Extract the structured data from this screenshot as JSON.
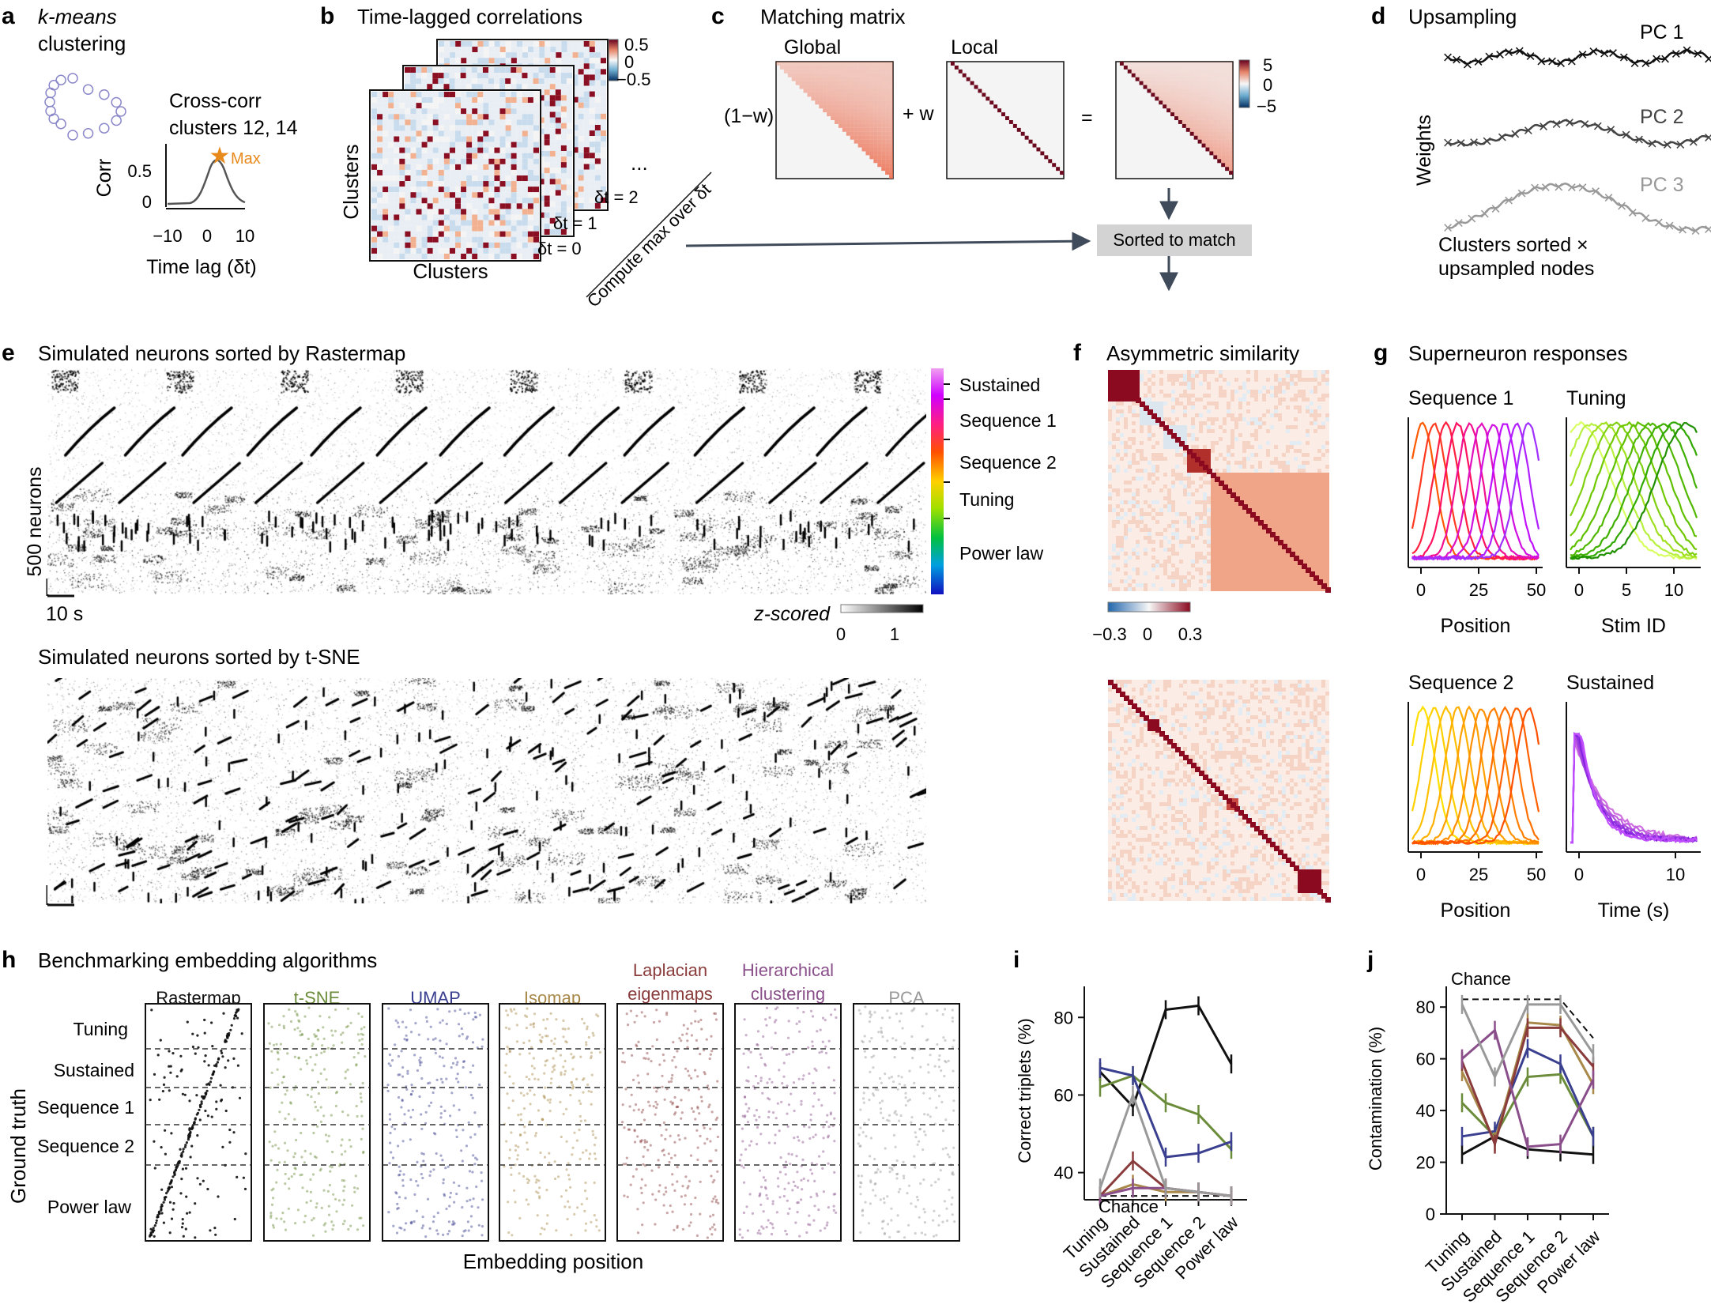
{
  "panels": {
    "a": {
      "letter": "a",
      "title_line1": "k-means",
      "title_line2": "clustering",
      "cc_title1": "Cross-corr",
      "cc_title2": "clusters 12, 14",
      "ylabel": "Corr",
      "xlabel": "Time lag (δt)",
      "max_label": "Max",
      "yticks": [
        "0.5",
        "0"
      ],
      "xticks": [
        "−10",
        "0",
        "10"
      ]
    },
    "b": {
      "letter": "b",
      "title": "Time-lagged correlations",
      "ylabel": "Clusters",
      "xlabel": "Clusters",
      "lags": [
        "δt = 0",
        "δt = 1",
        "δt = 2"
      ],
      "ellipsis": "...",
      "cbar_ticks": [
        "0.5",
        "0",
        "−0.5"
      ],
      "diag_label": "Compute max over δt"
    },
    "c": {
      "letter": "c",
      "title": "Matching matrix",
      "global": "Global",
      "local": "Local",
      "w_left": "(1−w)",
      "plus_w": "+ w",
      "equals": "=",
      "cbar_ticks": [
        "5",
        "0",
        "−5"
      ],
      "sorted_box": "Sorted to match"
    },
    "d": {
      "letter": "d",
      "title": "Upsampling",
      "ylabel": "Weights",
      "pcs": [
        "PC 1",
        "PC 2",
        "PC 3"
      ],
      "caption1": "Clusters sorted ×",
      "caption2": "upsampled nodes"
    },
    "e": {
      "letter": "e",
      "title": "Simulated neurons sorted by Rastermap",
      "title2": "Simulated neurons sorted by t-SNE",
      "ylabel": "500 neurons",
      "xscale": "10 s",
      "legend": [
        "Sustained",
        "Sequence 1",
        "Sequence 2",
        "Tuning",
        "Power law"
      ],
      "zlabel": "z-scored",
      "zticks": [
        "0",
        "1"
      ]
    },
    "f": {
      "letter": "f",
      "title": "Asymmetric similarity",
      "cbar_ticks": [
        "−0.3",
        "0",
        "0.3"
      ]
    },
    "g": {
      "letter": "g",
      "title": "Superneuron responses",
      "sub": [
        {
          "title": "Sequence 1",
          "xlabel": "Position",
          "xticks": [
            "0",
            "25",
            "50"
          ]
        },
        {
          "title": "Tuning",
          "xlabel": "Stim ID",
          "xticks": [
            "0",
            "5",
            "10"
          ]
        },
        {
          "title": "Sequence 2",
          "xlabel": "Position",
          "xticks": [
            "0",
            "25",
            "50"
          ]
        },
        {
          "title": "Sustained",
          "xlabel": "Time (s)",
          "xticks": [
            "0",
            "10"
          ]
        }
      ]
    },
    "h": {
      "letter": "h",
      "title": "Benchmarking embedding algorithms",
      "ylabel": "Ground truth",
      "xlabel": "Embedding position",
      "rows": [
        "Tuning",
        "Sustained",
        "Sequence 1",
        "Sequence 2",
        "Power law"
      ],
      "methods": [
        {
          "line1": "Rastermap",
          "line2": "",
          "color": "#111111"
        },
        {
          "line1": "t-SNE",
          "line2": "",
          "color": "#6b8c3a"
        },
        {
          "line1": "UMAP",
          "line2": "",
          "color": "#3a3f8f"
        },
        {
          "line1": "Isomap",
          "line2": "",
          "color": "#a8894a"
        },
        {
          "line1": "Laplacian",
          "line2": "eigenmaps",
          "color": "#8a3b3b"
        },
        {
          "line1": "Hierarchical",
          "line2": "clustering",
          "color": "#8a4f8a"
        },
        {
          "line1": "PCA",
          "line2": "",
          "color": "#999999"
        }
      ]
    },
    "i": {
      "letter": "i",
      "ylabel": "Correct triplets (%)",
      "chance": "Chance"
    },
    "j": {
      "letter": "j",
      "ylabel": "Contamination (%)",
      "chance": "Chance"
    }
  },
  "chart_data": [
    {
      "id": "i",
      "type": "line",
      "ylabel": "Correct triplets (%)",
      "categories": [
        "Tuning",
        "Sustained",
        "Sequence 1",
        "Sequence 2",
        "Power law"
      ],
      "ylim": [
        33,
        88
      ],
      "yticks": [
        40,
        60,
        80
      ],
      "chance": [
        34,
        34,
        34,
        34,
        34
      ],
      "series": [
        {
          "name": "Rastermap",
          "color": "#111111",
          "values": [
            66,
            57,
            82,
            83,
            68
          ]
        },
        {
          "name": "t-SNE",
          "color": "#6b8c3a",
          "values": [
            62,
            65,
            58,
            55,
            46
          ]
        },
        {
          "name": "UMAP",
          "color": "#3a3f8f",
          "values": [
            67,
            65,
            44,
            45,
            48
          ]
        },
        {
          "name": "Isomap",
          "color": "#a8894a",
          "values": [
            34,
            37,
            35,
            35,
            34
          ]
        },
        {
          "name": "Laplacian eigenmaps",
          "color": "#8a3b3b",
          "values": [
            34,
            43,
            36,
            35,
            34
          ]
        },
        {
          "name": "Hierarchical clustering",
          "color": "#8a4f8a",
          "values": [
            34,
            36,
            36,
            35,
            34
          ]
        },
        {
          "name": "PCA",
          "color": "#999999",
          "values": [
            36,
            60,
            36,
            35,
            34
          ]
        }
      ]
    },
    {
      "id": "j",
      "type": "line",
      "ylabel": "Contamination (%)",
      "categories": [
        "Tuning",
        "Sustained",
        "Sequence 1",
        "Sequence 2",
        "Power law"
      ],
      "ylim": [
        0,
        88
      ],
      "yticks": [
        0,
        20,
        40,
        60,
        80
      ],
      "chance": [
        83,
        83,
        83,
        83,
        68
      ],
      "series": [
        {
          "name": "Rastermap",
          "color": "#111111",
          "values": [
            23,
            30,
            25,
            24,
            23
          ]
        },
        {
          "name": "t-SNE",
          "color": "#6b8c3a",
          "values": [
            43,
            30,
            53,
            54,
            30
          ]
        },
        {
          "name": "UMAP",
          "color": "#3a3f8f",
          "values": [
            30,
            32,
            64,
            58,
            30
          ]
        },
        {
          "name": "Isomap",
          "color": "#a8894a",
          "values": [
            55,
            28,
            74,
            73,
            50
          ]
        },
        {
          "name": "Laplacian eigenmaps",
          "color": "#8a3b3b",
          "values": [
            59,
            27,
            72,
            72,
            57
          ]
        },
        {
          "name": "Hierarchical clustering",
          "color": "#8a4f8a",
          "values": [
            60,
            71,
            26,
            27,
            52
          ]
        },
        {
          "name": "PCA",
          "color": "#999999",
          "values": [
            81,
            53,
            81,
            81,
            62
          ]
        }
      ]
    }
  ]
}
